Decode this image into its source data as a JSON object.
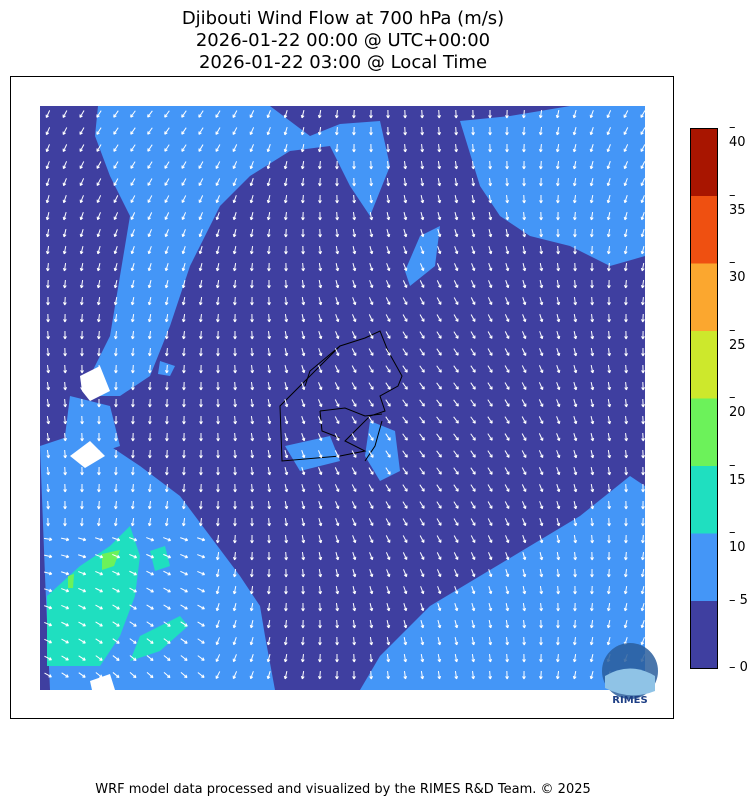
{
  "title": {
    "line1": "Djibouti Wind Flow at 700 hPa (m/s)",
    "line2": "2026-01-22 00:00 @ UTC+00:00",
    "line3": "2026-01-22 03:00 @ Local Time"
  },
  "colorbar": {
    "ticks": [
      "0",
      "5",
      "10",
      "15",
      "20",
      "25",
      "30",
      "35",
      "40"
    ],
    "levels": [
      0,
      5,
      10,
      15,
      20,
      25,
      30,
      35,
      40
    ],
    "colors": [
      "#3f3fa0",
      "#4496f7",
      "#1fdfc0",
      "#6cf25a",
      "#cde82c",
      "#fba72f",
      "#ef5011",
      "#a81500"
    ]
  },
  "logo": {
    "text": "RIMES"
  },
  "footer": "WRF model data processed and visualized by the RIMES R&D Team. © 2025"
}
